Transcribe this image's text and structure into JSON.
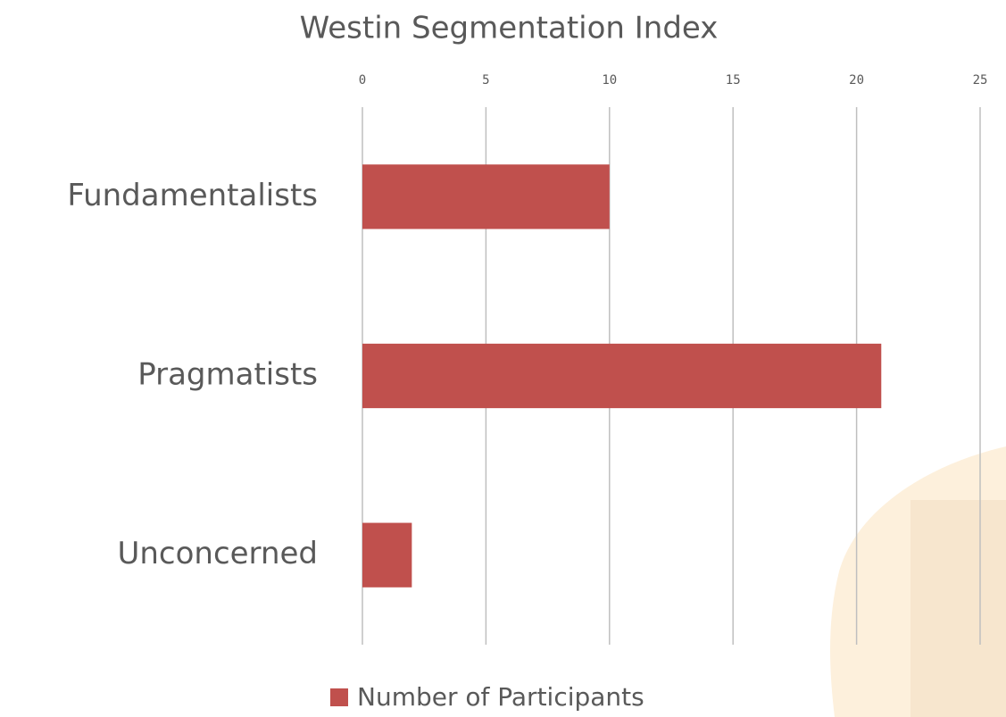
{
  "chart_data": {
    "type": "bar",
    "orientation": "horizontal",
    "title": "Westin Segmentation Index",
    "categories": [
      "Fundamentalists",
      "Pragmatists",
      "Unconcerned"
    ],
    "series": [
      {
        "name": "Number of Participants",
        "color": "#c0504d",
        "values": [
          10,
          21,
          2
        ]
      }
    ],
    "xlim": [
      0,
      25
    ],
    "xticks": [
      0,
      5,
      10,
      15,
      20,
      25
    ],
    "grid": true,
    "legend": "bottom"
  }
}
